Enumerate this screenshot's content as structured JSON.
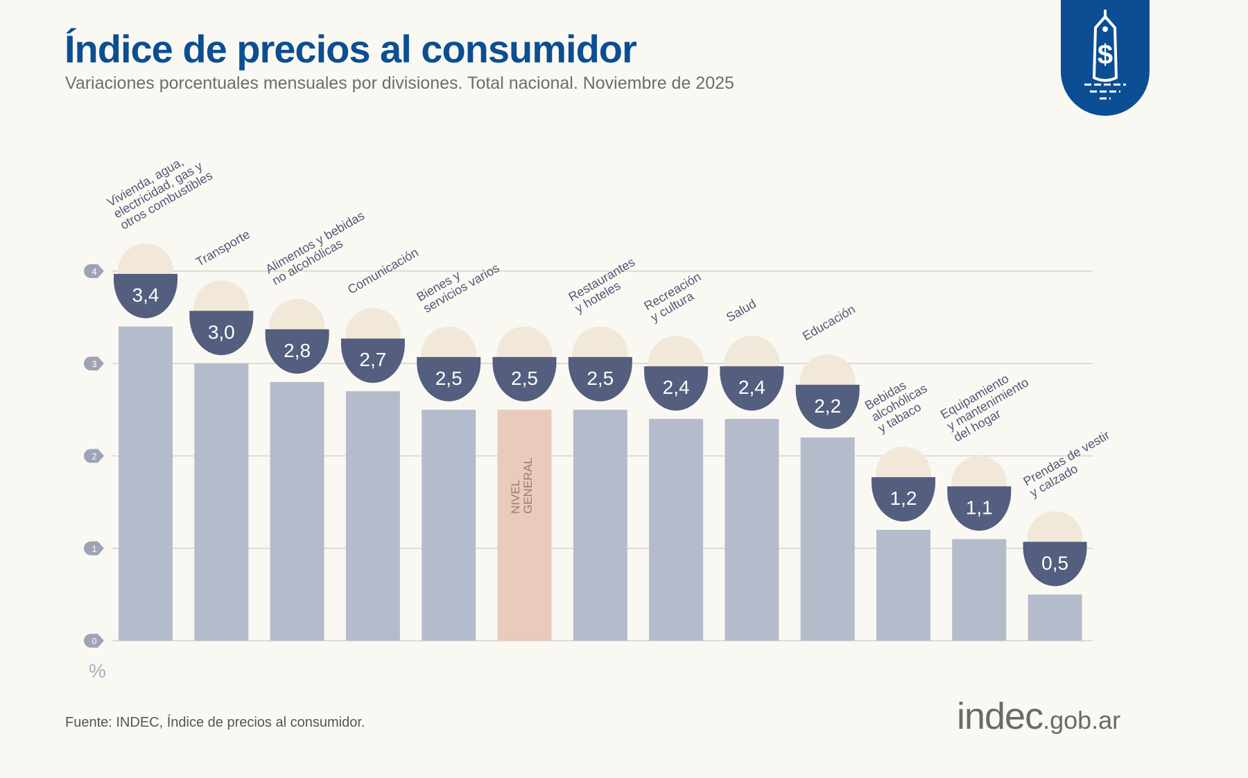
{
  "header": {
    "title": "Índice de precios al consumidor",
    "subtitle": "Variaciones porcentuales mensuales por divisiones. Total nacional. Noviembre de 2025"
  },
  "logo_icon": "price-tag-dollar-icon",
  "chart_data": {
    "type": "bar",
    "title": "Índice de precios al consumidor",
    "subtitle": "Variaciones porcentuales mensuales por divisiones. Total nacional. Noviembre de 2025",
    "ylabel": "%",
    "ylim": [
      0,
      4
    ],
    "yticks": [
      "0",
      "1",
      "2",
      "3",
      "4"
    ],
    "grid": true,
    "categories": [
      "Vivienda, agua,\nelectricidad, gas y\notros combustibles",
      "Transporte",
      "Alimentos y bebidas\nno alcohólicas",
      "Comunicación",
      "Bienes y\nservicios varios",
      "NIVEL\nGENERAL",
      "Restaurantes\ny hoteles",
      "Recreación\ny cultura",
      "Salud",
      "Educación",
      "Bebidas\nalcohólicas\ny tabaco",
      "Equipamiento\ny mantenimiento\ndel hogar",
      "Prendas de vestir\ny calzado"
    ],
    "values": [
      3.4,
      3.0,
      2.8,
      2.7,
      2.5,
      2.5,
      2.5,
      2.4,
      2.4,
      2.2,
      1.2,
      1.1,
      0.5
    ],
    "value_labels": [
      "3,4",
      "3,0",
      "2,8",
      "2,7",
      "2,5",
      "2,5",
      "2,5",
      "2,4",
      "2,4",
      "2,2",
      "1,2",
      "1,1",
      "0,5"
    ],
    "highlight_index": 5,
    "colors": {
      "bar": "#b4bccb",
      "highlight": "#e8cbbd",
      "badge": "#545e7e",
      "title": "#0b4e93"
    }
  },
  "footer": {
    "source": "Fuente: INDEC, Índice de precios al consumidor.",
    "brand": "indec",
    "brand_suffix": ".gob.ar"
  }
}
